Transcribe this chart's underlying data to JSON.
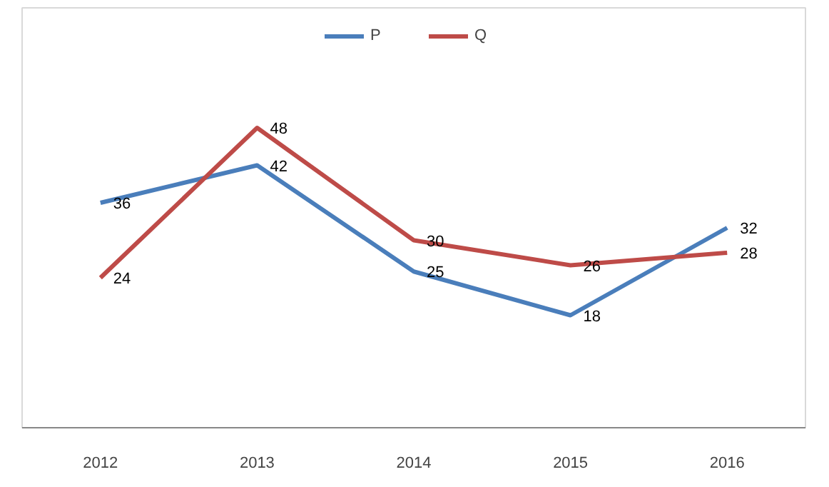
{
  "chart_data": {
    "type": "line",
    "categories": [
      "2012",
      "2013",
      "2014",
      "2015",
      "2016"
    ],
    "series": [
      {
        "name": "P",
        "color": "#4a7ebb",
        "values": [
          36,
          42,
          25,
          18,
          32
        ]
      },
      {
        "name": "Q",
        "color": "#be4b48",
        "values": [
          24,
          48,
          30,
          26,
          28
        ]
      }
    ],
    "data_labels": true,
    "legend": "top",
    "grid": false,
    "marker": "none",
    "line_style": "solid"
  }
}
